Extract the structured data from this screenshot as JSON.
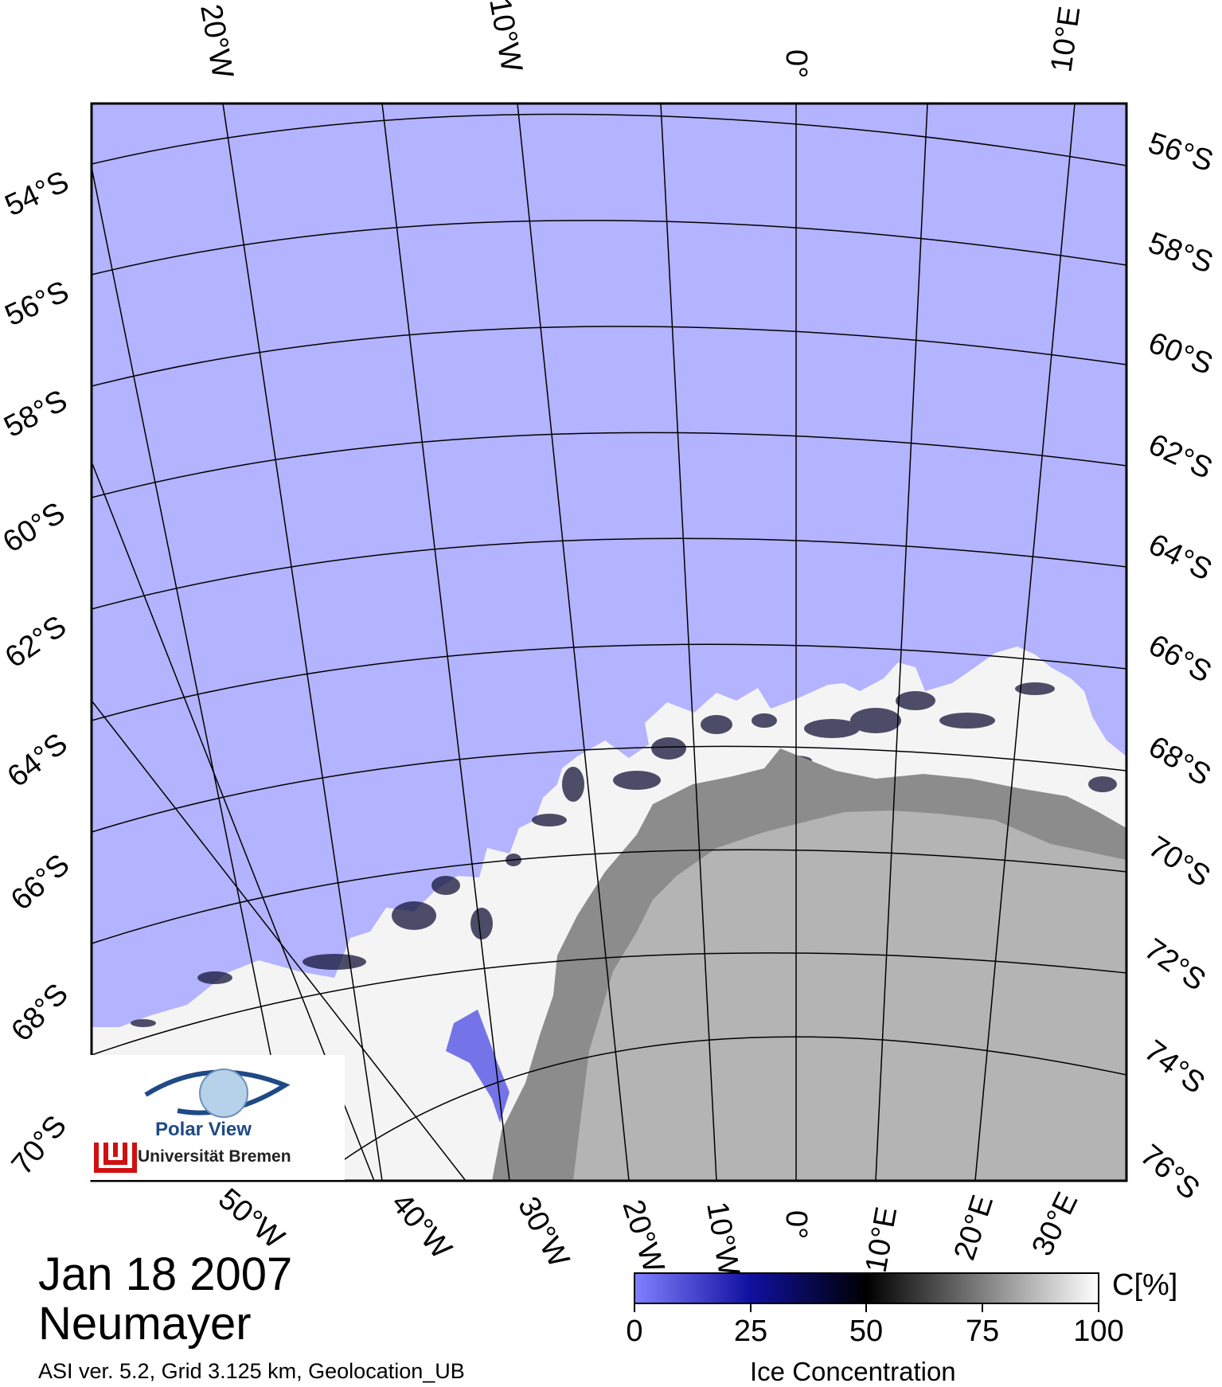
{
  "map": {
    "date": "Jan 18 2007",
    "station": "Neumayer",
    "info": "ASI ver. 5.2,  Grid 3.125 km, Geolocation_UB",
    "top_labels": [
      "20°W",
      "10°W",
      "0°",
      "10°E"
    ],
    "left_labels": [
      "54°S",
      "56°S",
      "58°S",
      "60°S",
      "62°S",
      "64°S",
      "66°S",
      "68°S",
      "70°S"
    ],
    "right_labels": [
      "56°S",
      "58°S",
      "60°S",
      "62°S",
      "64°S",
      "66°S",
      "68°S",
      "70°S",
      "72°S",
      "74°S",
      "76°S"
    ],
    "bottom_labels": [
      "50°W",
      "40°W",
      "30°W",
      "20°W",
      "10°W",
      "0°",
      "10°E",
      "20°E",
      "30°E"
    ]
  },
  "colorbar": {
    "title": "Ice Concentration",
    "unit": "C[%]",
    "ticks": [
      "0",
      "25",
      "50",
      "75",
      "100"
    ]
  },
  "logo": {
    "title": "Polar View",
    "subtitle": "Universität Bremen"
  },
  "colors": {
    "open_water": "#b3b3ff",
    "land": "#b4b4b4",
    "ice_shelf": "#8c8c8c",
    "full_ice": "#f4f4f4",
    "logo_blue": "#1f4a86",
    "logo_red": "#d01010"
  }
}
